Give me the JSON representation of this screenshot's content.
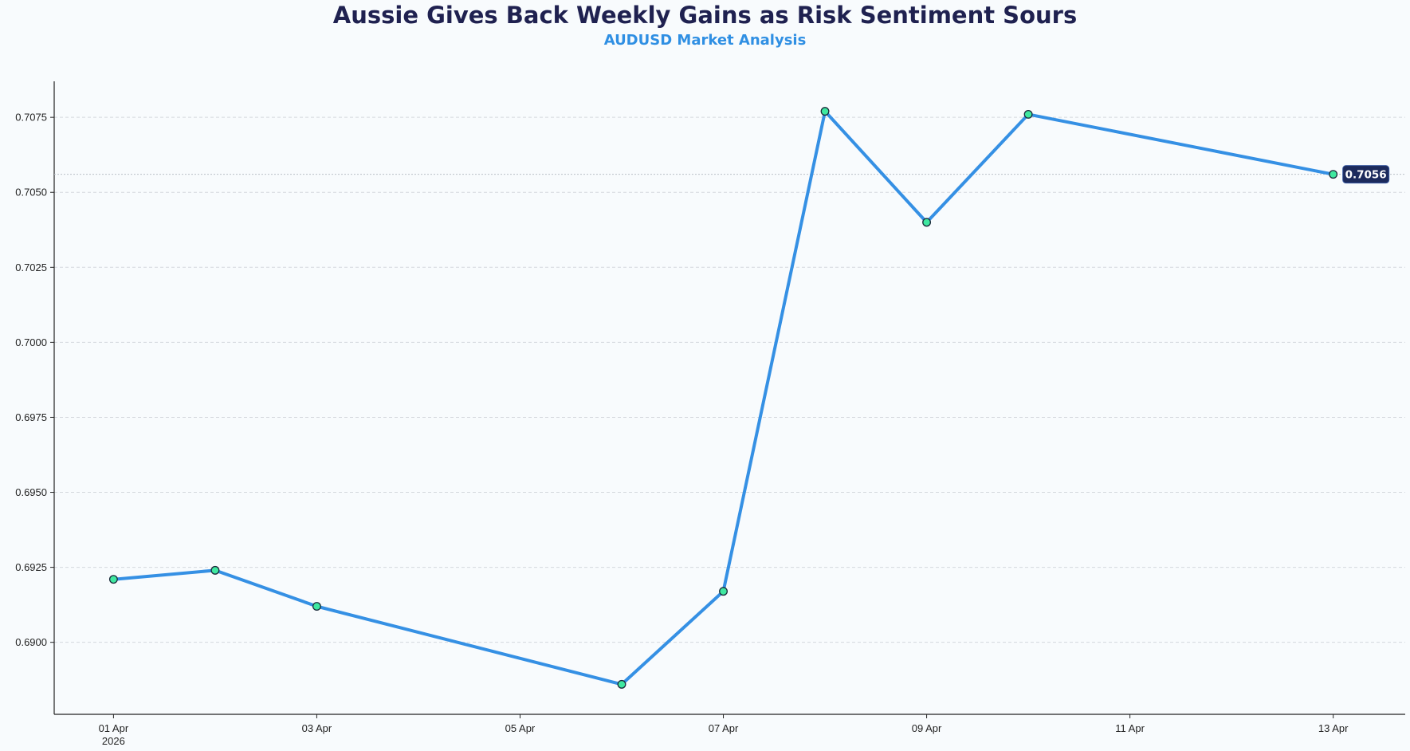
{
  "chart_data": {
    "type": "line",
    "title": "Aussie Gives Back Weekly Gains as Risk Sentiment Sours",
    "subtitle": "AUDUSD Market Analysis",
    "xlabel": "",
    "ylabel": "",
    "x": [
      "2026-04-01",
      "2026-04-02",
      "2026-04-03",
      "2026-04-06",
      "2026-04-07",
      "2026-04-08",
      "2026-04-09",
      "2026-04-10",
      "2026-04-13"
    ],
    "series": [
      {
        "values": [
          0.6921,
          0.6924,
          0.6912,
          0.6886,
          0.6917,
          0.7077,
          0.704,
          0.7076,
          0.7056
        ]
      }
    ],
    "xlim": [
      "2026-03-31T10:00",
      "2026-04-13T17:00"
    ],
    "ylim": [
      0.6876,
      0.7087
    ],
    "x_ticks": [
      {
        "date": "2026-04-01",
        "label": "01 Apr",
        "sublabel": "2026"
      },
      {
        "date": "2026-04-03",
        "label": "03 Apr",
        "sublabel": ""
      },
      {
        "date": "2026-04-05",
        "label": "05 Apr",
        "sublabel": ""
      },
      {
        "date": "2026-04-07",
        "label": "07 Apr",
        "sublabel": ""
      },
      {
        "date": "2026-04-09",
        "label": "09 Apr",
        "sublabel": ""
      },
      {
        "date": "2026-04-11",
        "label": "11 Apr",
        "sublabel": ""
      },
      {
        "date": "2026-04-13",
        "label": "13 Apr",
        "sublabel": ""
      }
    ],
    "y_ticks": [
      0.69,
      0.6925,
      0.695,
      0.6975,
      0.7,
      0.7025,
      0.705,
      0.7075
    ],
    "y_tick_labels": [
      "0.6900",
      "0.6925",
      "0.6950",
      "0.6975",
      "0.7000",
      "0.7025",
      "0.7050",
      "0.7075"
    ],
    "last_value_label": "0.7056",
    "grid": "horizontal dashed",
    "legend": "none",
    "colors": {
      "line": "#3590e4",
      "marker_fill": "#3fe8a0",
      "marker_edge": "#1a2a3a",
      "title": "#1f2150",
      "subtitle": "#2f8fe3",
      "badge_bg": "#1c2a5c",
      "badge_text": "#ffffff",
      "grid": "#d4d8dd",
      "axis": "#222222",
      "background": "#f8fbfd"
    }
  }
}
